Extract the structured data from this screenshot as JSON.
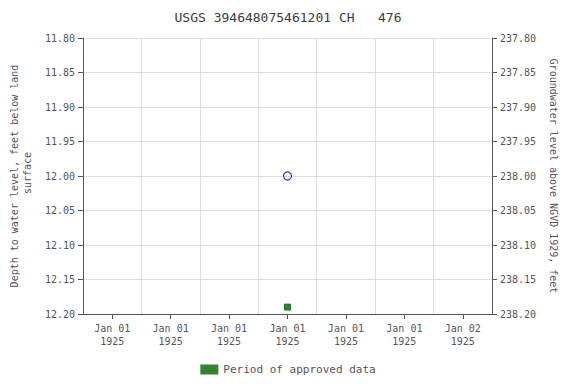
{
  "chart_data": {
    "type": "scatter",
    "title": "USGS 394648075461201 CH   476",
    "y_label": "Depth to water level, feet below land\n surface",
    "y2_label": "Groundwater level above NGVD 1929, feet",
    "categories": [
      "Jan 01\n1925",
      "Jan 01\n1925",
      "Jan 01\n1925",
      "Jan 01\n1925",
      "Jan 01\n1925",
      "Jan 01\n1925",
      "Jan 02\n1925"
    ],
    "series": [
      {
        "values": [
          null,
          null,
          null,
          12.0,
          null,
          null,
          null
        ],
        "color": "#0000cc",
        "marker": "open_circle"
      },
      {
        "name": "Period of approved data",
        "values": [
          null,
          null,
          null,
          12.19,
          null,
          null,
          null
        ],
        "color": "#006400",
        "marker": "square"
      }
    ],
    "ylim": [
      12.2,
      11.8
    ],
    "yticks": [
      {
        "value": 11.8,
        "label": "11.80"
      },
      11.85,
      {
        "value": 11.9,
        "label": "11.90"
      },
      11.95,
      {
        "value": 12.0,
        "label": "12.00"
      },
      12.05,
      {
        "value": 12.1,
        "label": "12.10"
      },
      12.15,
      {
        "value": 12.2,
        "label": "12.20"
      }
    ],
    "y2lim": [
      238.2,
      237.8
    ],
    "y2ticks": [
      {
        "value": 237.8,
        "label": "237.80"
      },
      237.85,
      {
        "value": 237.9,
        "label": "237.90"
      },
      237.95,
      {
        "value": 238.0,
        "label": "238.00"
      },
      238.05,
      {
        "value": 238.1,
        "label": "238.10"
      },
      238.15,
      {
        "value": 238.2,
        "label": "238.20"
      }
    ],
    "grid": true,
    "legend": "bottom"
  }
}
